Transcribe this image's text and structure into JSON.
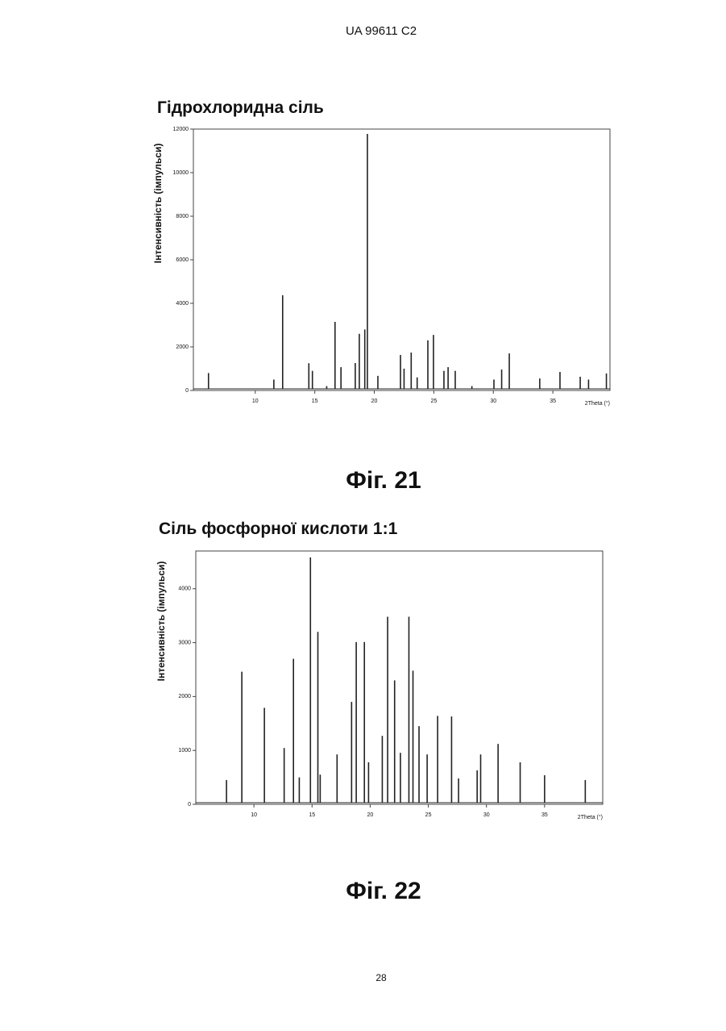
{
  "header": "UA 99611 C2",
  "page_number": "28",
  "chart_data": [
    {
      "type": "stem",
      "title": "Гідрохлоридна сіль",
      "caption": "Фіг. 21",
      "xlabel": "2Theta (°)",
      "ylabel": "Інтенсивність (імпульси)",
      "color": "#222222",
      "xlim": [
        4.8,
        39.8
      ],
      "ylim": [
        0,
        12000
      ],
      "xticks": [
        10,
        15,
        20,
        25,
        30,
        35
      ],
      "yticks": [
        0,
        2000,
        4000,
        6000,
        8000,
        10000,
        12000
      ],
      "x": [
        6.07,
        11.56,
        12.3,
        14.5,
        14.8,
        16.0,
        16.7,
        17.2,
        18.4,
        18.74,
        19.2,
        19.42,
        20.3,
        22.2,
        22.5,
        23.1,
        23.6,
        24.5,
        24.97,
        25.85,
        26.2,
        26.8,
        28.2,
        30.05,
        30.7,
        31.34,
        33.9,
        35.6,
        37.3,
        38.0,
        39.5
      ],
      "values": [
        800,
        500,
        4370,
        1250,
        900,
        200,
        3150,
        1070,
        1260,
        2600,
        2800,
        11780,
        670,
        1630,
        1000,
        1740,
        600,
        2300,
        2550,
        900,
        1070,
        900,
        200,
        500,
        960,
        1700,
        550,
        850,
        630,
        500,
        780
      ]
    },
    {
      "type": "stem",
      "title": "Сіль фосфорної кислоти 1:1",
      "caption": "Фіг. 22",
      "xlabel": "2Theta (°)",
      "ylabel": "Інтенсивність (імпульси)",
      "color": "#222222",
      "xlim": [
        5,
        40
      ],
      "ylim": [
        0,
        4700
      ],
      "xticks": [
        10,
        15,
        20,
        25,
        30,
        35
      ],
      "yticks": [
        0,
        1000,
        2000,
        3000,
        4000
      ],
      "x": [
        7.64,
        8.96,
        10.9,
        12.6,
        13.4,
        13.9,
        14.86,
        15.5,
        15.7,
        17.15,
        18.4,
        18.8,
        19.5,
        19.86,
        21.04,
        21.5,
        22.1,
        22.6,
        23.33,
        23.68,
        24.2,
        24.9,
        25.8,
        27.0,
        27.6,
        29.2,
        29.5,
        31.0,
        32.9,
        35.0,
        38.5
      ],
      "values": [
        450,
        2460,
        1790,
        1045,
        2700,
        500,
        4580,
        3200,
        550,
        925,
        1900,
        3010,
        3010,
        780,
        1270,
        3480,
        2300,
        955,
        3480,
        2480,
        1450,
        925,
        1640,
        1630,
        480,
        630,
        925,
        1120,
        780,
        540,
        450
      ]
    }
  ]
}
